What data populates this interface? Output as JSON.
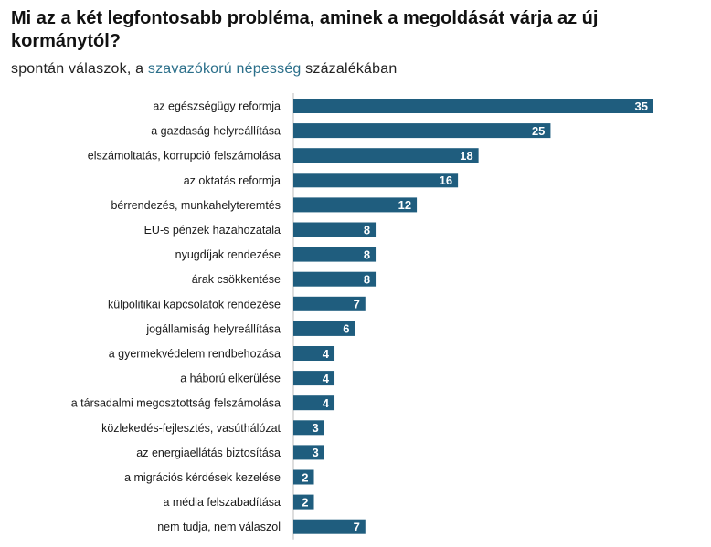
{
  "title": "Mi az a két legfontosabb probléma, aminek a megoldását várja az új kormánytól?",
  "subtitle": {
    "before": "spontán válaszok, a ",
    "highlight": "szavazókorú népesség",
    "after": " százalékában"
  },
  "colors": {
    "bar": "#1f5d7e",
    "highlight": "#2b6f8a"
  },
  "chart_data": {
    "type": "bar",
    "orientation": "horizontal",
    "title": "Mi az a két legfontosabb probléma, aminek a megoldását várja az új kormánytól?",
    "subtitle": "spontán válaszok, a szavazókorú népesség százalékában",
    "categories": [
      "az egészségügy reformja",
      "a gazdaság helyreállítása",
      "elszámoltatás, korrupció felszámolása",
      "az oktatás reformja",
      "bérrendezés, munkahelyteremtés",
      "EU-s pénzek hazahozatala",
      "nyugdíjak rendezése",
      "árak csökkentése",
      "külpolitikai kapcsolatok rendezése",
      "jogállamiság helyreállítása",
      "a gyermekvédelem rendbehozása",
      "a háború elkerülése",
      "a társadalmi megosztottság felszámolása",
      "közlekedés-fejlesztés, vasúthálózat",
      "az energiaellátás biztosítása",
      "a migrációs kérdések kezelése",
      "a média felszabadítása",
      "nem tudja, nem válaszol"
    ],
    "values": [
      35,
      25,
      18,
      16,
      12,
      8,
      8,
      8,
      7,
      6,
      4,
      4,
      4,
      3,
      3,
      2,
      2,
      7
    ],
    "xlim": [
      0,
      35
    ],
    "grid": false,
    "legend": "none",
    "data_labels": "inside-end"
  }
}
